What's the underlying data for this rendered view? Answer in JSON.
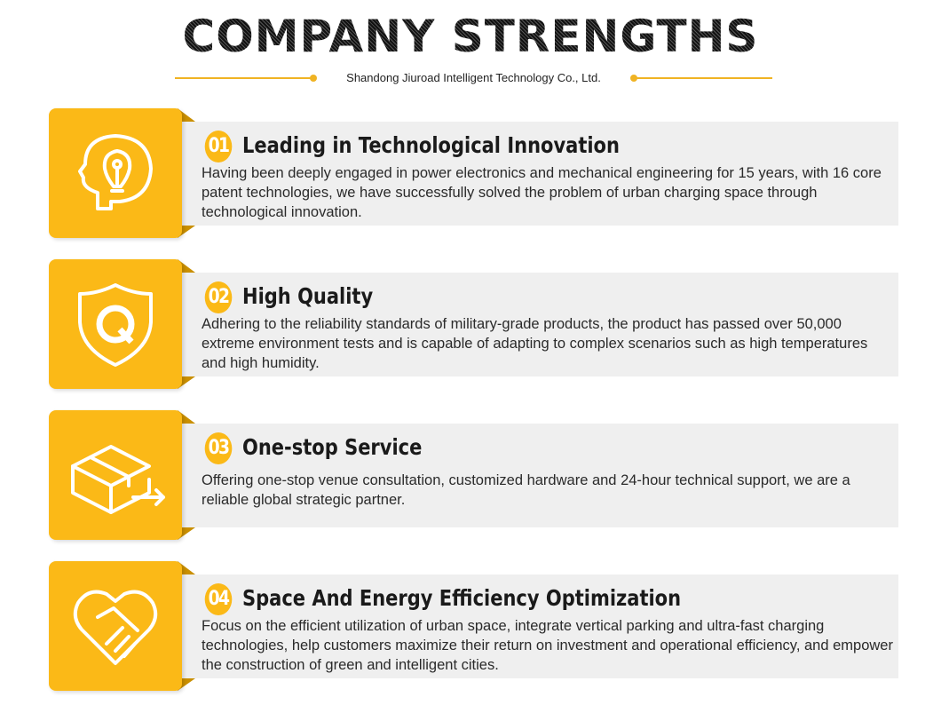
{
  "title": "COMPANY STRENGTHS",
  "subtitle": "Shandong Jiuroad Intelligent Technology Co., Ltd.",
  "accent": "#fbb917",
  "items": [
    {
      "number": "01",
      "heading": "Leading in Technological Innovation",
      "icon": "head-lightbulb-icon",
      "text": "Having been deeply engaged in power electronics and mechanical engineering for 15 years, with 16 core patent technologies, we have successfully solved the problem of urban charging space through technological innovation."
    },
    {
      "number": "02",
      "heading": "High Quality",
      "icon": "quality-shield-icon",
      "text": "Adhering to the reliability standards of military-grade products, the product has passed over 50,000 extreme environment tests and is capable of adapting to complex scenarios such as high temperatures and high humidity."
    },
    {
      "number": "03",
      "heading": "One-stop Service",
      "icon": "box-delivery-icon",
      "text": "Offering one-stop venue consultation, customized hardware and 24-hour technical support, we are a reliable global strategic partner."
    },
    {
      "number": "04",
      "heading": "Space And Energy Efficiency Optimization",
      "icon": "heart-handshake-icon",
      "text": "Focus on the efficient utilization of urban space, integrate vertical parking and ultra-fast charging technologies, help customers maximize their return on investment and operational efficiency, and empower the construction of green and intelligent cities."
    }
  ]
}
